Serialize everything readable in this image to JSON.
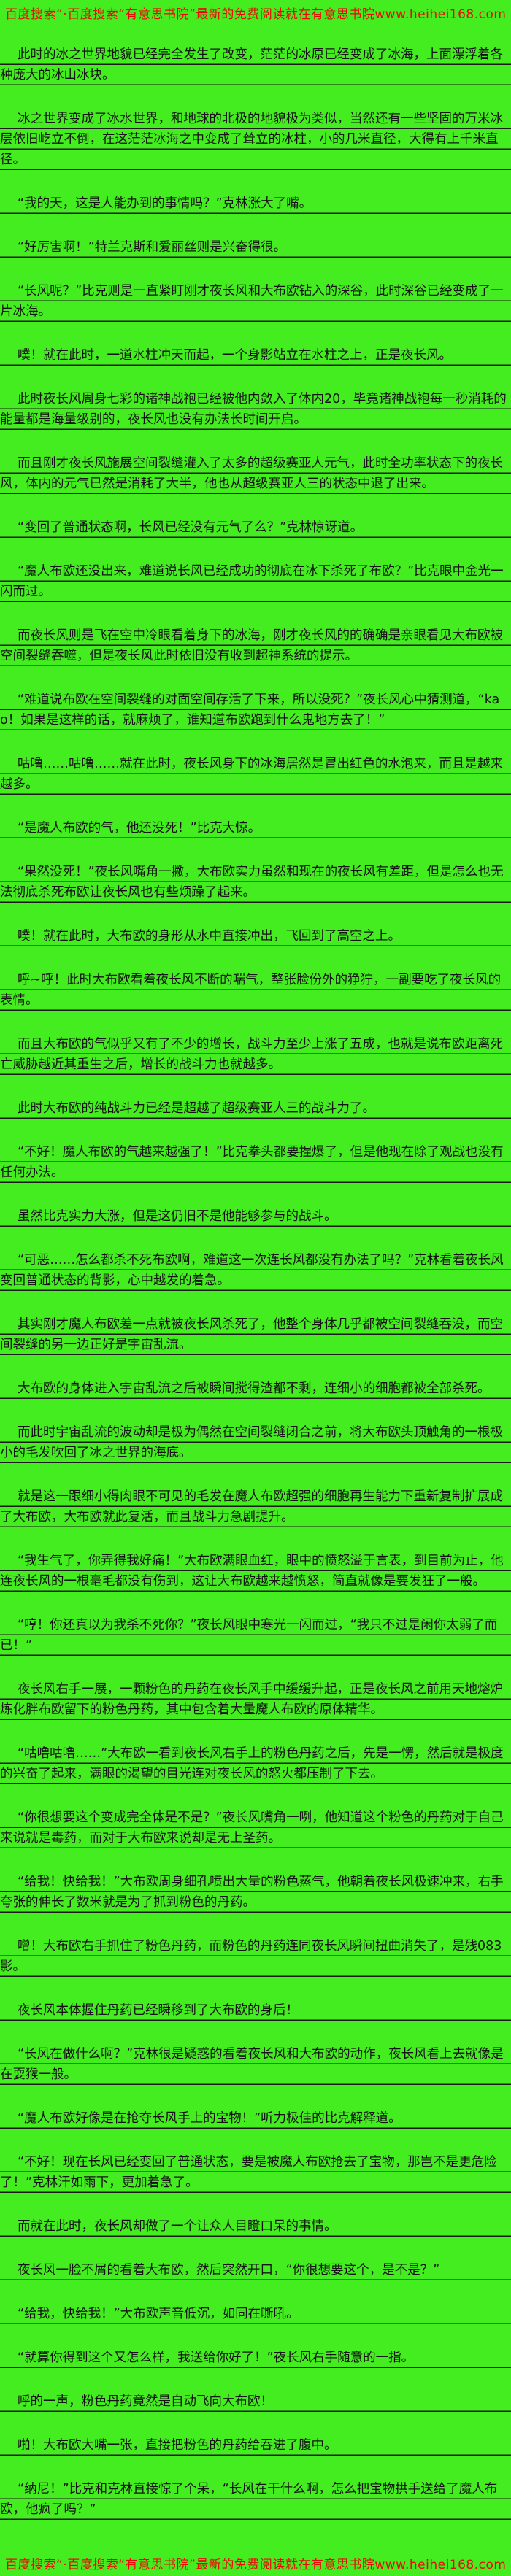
{
  "page": {
    "background_color": "#44ed1f",
    "promo_text_color": "#ee0606",
    "body_text_color": "#141414"
  },
  "header": {
    "text": "百度搜索“·百度搜索“有意思书院”最新的免费阅读就在有意思书院www.heihei168.com"
  },
  "footer": {
    "text": "百度搜索“·百度搜索“有意思书院”最新的免费阅读就在有意思书院www.heihei168.com"
  },
  "content": {
    "paragraphs": [
      "此时的冰之世界地貌已经完全发生了改变，茫茫的冰原已经变成了冰海，上面漂浮着各种庞大的冰山冰块。",
      "冰之世界变成了冰水世界，和地球的北极的地貌极为类似，当然还有一些坚固的万米冰层依旧屹立不倒，在这茫茫冰海之中变成了耸立的冰柱，小的几米直径，大得有上千米直径。",
      "“我的天，这是人能办到的事情吗？”克林涨大了嘴。",
      "“好厉害啊！”特兰克斯和爱丽丝则是兴奋得很。",
      "“长风呢？”比克则是一直紧盯刚才夜长风和大布欧钻入的深谷，此时深谷已经变成了一片冰海。",
      "噗！就在此时，一道水柱冲天而起，一个身影站立在水柱之上，正是夜长风。",
      "此时夜长风周身七彩的诸神战袍已经被他内敛入了体内20，毕竟诸神战袍每一秒消耗的能量都是海量级别的，夜长风也没有办法长时间开启。",
      "而且刚才夜长风施展空间裂缝灌入了太多的超级赛亚人元气，此时全功率状态下的夜长风，体内的元气已然是消耗了大半，他也从超级赛亚人三的状态中退了出来。",
      "“变回了普通状态啊，长风已经没有元气了么？”克林惊讶道。",
      "“魔人布欧还没出来，难道说长风已经成功的彻底在冰下杀死了布欧？”比克眼中金光一闪而过。",
      "而夜长风则是飞在空中冷眼看着身下的冰海，刚才夜长风的的确确是亲眼看见大布欧被空间裂缝吞噬，但是夜长风此时依旧没有收到超神系统的提示。",
      "“难道说布欧在空间裂缝的对面空间存活了下来，所以没死？”夜长风心中猜测道，“kao！如果是这样的话，就麻烦了，谁知道布欧跑到什么鬼地方去了！”",
      "咕噜……咕噜……就在此时，夜长风身下的冰海居然是冒出红色的水泡来，而且是越来越多。",
      "“是魔人布欧的气，他还没死！”比克大惊。",
      "“果然没死！”夜长风嘴角一撇，大布欧实力虽然和现在的夜长风有差距，但是怎么也无法彻底杀死布欧让夜长风也有些烦躁了起来。",
      "噗！就在此时，大布欧的身形从水中直接冲出，飞回到了高空之上。",
      "呼~呼！此时大布欧看着夜长风不断的喘气，整张脸份外的狰狞，一副要吃了夜长风的表情。",
      "而且大布欧的气似乎又有了不少的增长，战斗力至少上涨了五成，也就是说布欧距离死亡威胁越近其重生之后，增长的战斗力也就越多。",
      "此时大布欧的纯战斗力已经是超越了超级赛亚人三的战斗力了。",
      "“不好！魔人布欧的气越来越强了！”比克拳头都要捏爆了，但是他现在除了观战也没有任何办法。",
      "虽然比克实力大涨，但是这仍旧不是他能够参与的战斗。",
      "“可恶……怎么都杀不死布欧啊，难道这一次连长风都没有办法了吗？”克林看着夜长风变回普通状态的背影，心中越发的着急。",
      "其实刚才魔人布欧差一点就被夜长风杀死了，他整个身体几乎都被空间裂缝吞没，而空间裂缝的另一边正好是宇宙乱流。",
      "大布欧的身体进入宇宙乱流之后被瞬间搅得渣都不剩，连细小的细胞都被全部杀死。",
      "而此时宇宙乱流的波动却是极为偶然在空间裂缝闭合之前，将大布欧头顶触角的一根极小的毛发吹回了冰之世界的海底。",
      "就是这一跟细小得肉眼不可见的毛发在魔人布欧超强的细胞再生能力下重新复制扩展成了大布欧，大布欧就此复活，而且战斗力急剧提升。",
      "“我生气了，你弄得我好痛！”大布欧满眼血红，眼中的愤怒溢于言表，到目前为止，他连夜长风的一根毫毛都没有伤到，这让大布欧越来越愤怒，简直就像是要发狂了一般。",
      "“哼！你还真以为我杀不死你？”夜长风眼中寒光一闪而过，“我只不过是闲你太弱了而已！”",
      "夜长风右手一展，一颗粉色的丹药在夜长风手中缓缓升起，正是夜长风之前用天地熔炉炼化胖布欧留下的粉色丹药，其中包含着大量魔人布欧的原体精华。",
      "“咕噜咕噜……”大布欧一看到夜长风右手上的粉色丹药之后，先是一愣，然后就是极度的兴奋了起来，满眼的渴望的目光连对夜长风的怒火都压制了下去。",
      "“你很想要这个变成完全体是不是？”夜长风嘴角一咧，他知道这个粉色的丹药对于自己来说就是毒药，而对于大布欧来说却是无上圣药。",
      "“给我！快给我！”大布欧周身细孔喷出大量的粉色蒸气，他朝着夜长风极速冲来，右手夸张的伸长了数米就是为了抓到粉色的丹药。",
      "噌！大布欧右手抓住了粉色丹药，而粉色的丹药连同夜长风瞬间扭曲消失了，是残083影。",
      "夜长风本体握住丹药已经瞬移到了大布欧的身后！",
      "“长风在做什么啊？”克林很是疑惑的看着夜长风和大布欧的动作，夜长风看上去就像是在耍猴一般。",
      "“魔人布欧好像是在抢夺长风手上的宝物！”听力极佳的比克解释道。",
      "“不好！现在长风已经变回了普通状态，要是被魔人布欧抢去了宝物，那岂不是更危险了！”克林汗如雨下，更加着急了。",
      "而就在此时，夜长风却做了一个让众人目瞪口呆的事情。",
      "夜长风一脸不屑的看着大布欧，然后突然开口，“你很想要这个，是不是？”",
      "“给我，快给我！”大布欧声音低沉，如同在嘶吼。",
      "“就算你得到这个又怎么样，我送给你好了！”夜长风右手随意的一指。",
      "呼的一声，粉色丹药竟然是自动飞向大布欧！",
      "啪！大布欧大嘴一张，直接把粉色的丹药给吞进了腹中。",
      "“纳尼！”比克和克林直接惊了个呆，“长风在干什么啊，怎么把宝物拱手送给了魔人布欧，他疯了吗？”"
    ]
  }
}
